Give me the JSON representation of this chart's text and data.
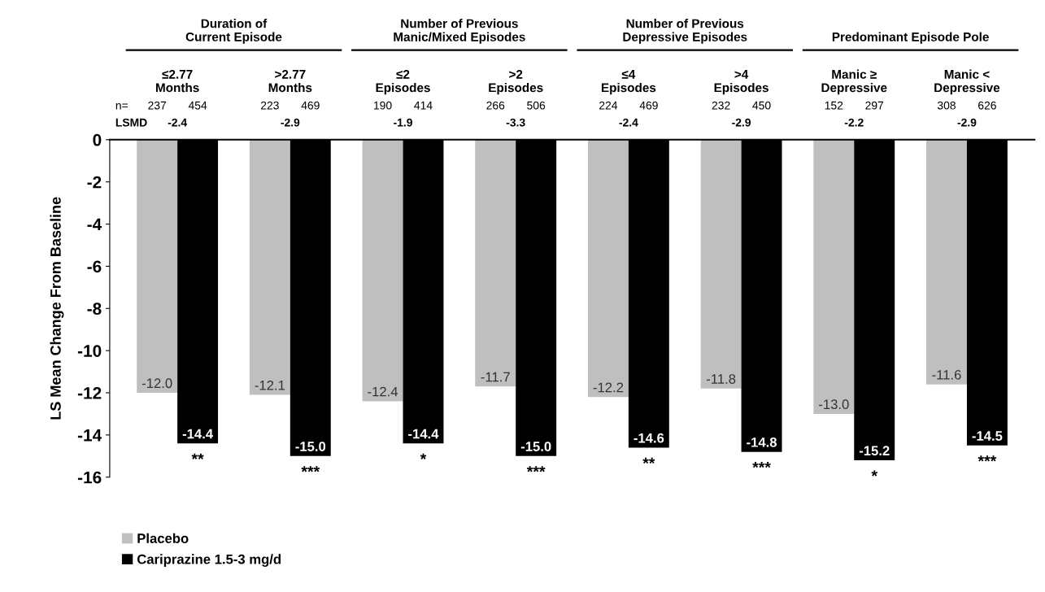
{
  "chart_data": {
    "type": "bar",
    "ylabel": "LS Mean Change From Baseline",
    "categories": [
      "≤2.77\nMonths",
      ">2.77\nMonths",
      "≤2\nEpisodes",
      ">2\nEpisodes",
      "≤4\nEpisodes",
      ">4\nEpisodes",
      "Manic ≥\nDepressive",
      "Manic <\nDepressive"
    ],
    "series": [
      {
        "name": "Placebo",
        "color": "#bfbfbf",
        "values": [
          -12.0,
          -12.1,
          -12.4,
          -11.7,
          -12.2,
          -11.8,
          -13.0,
          -11.6
        ],
        "value_labels": [
          "-12.0",
          "-12.1",
          "-12.4",
          "-11.7",
          "-12.2",
          "-11.8",
          "-13.0",
          "-11.6"
        ]
      },
      {
        "name": "Cariprazine 1.5-3 mg/d",
        "color": "#000000",
        "values": [
          -14.4,
          -15.0,
          -14.4,
          -15.0,
          -14.6,
          -14.8,
          -15.2,
          -14.5
        ],
        "value_labels": [
          "-14.4",
          "-15.0",
          "-14.4",
          "-15.0",
          "-14.6",
          "-14.8",
          "-15.2",
          "-14.5"
        ]
      }
    ],
    "ylim": [
      -16,
      0
    ],
    "yticks": [
      0,
      -2,
      -4,
      -6,
      -8,
      -10,
      -12,
      -14,
      -16
    ],
    "grid": false,
    "legend": "bottom left",
    "annotations": [
      "Duration of\nCurrent Episode",
      "Number of Previous\nManic/Mixed Episodes",
      "Number of Previous\nDepressive Episodes",
      "Predominant Episode Pole",
      "n=",
      "237",
      "454",
      "223",
      "469",
      "190",
      "414",
      "266",
      "506",
      "224",
      "469",
      "232",
      "450",
      "152",
      "297",
      "308",
      "626",
      "LSMD",
      "-2.4",
      "-2.9",
      "-1.9",
      "-3.3",
      "-2.4",
      "-2.9",
      "-2.2",
      "-2.9",
      "**",
      "***",
      "*",
      "***",
      "**",
      "***",
      "*",
      "***"
    ]
  }
}
